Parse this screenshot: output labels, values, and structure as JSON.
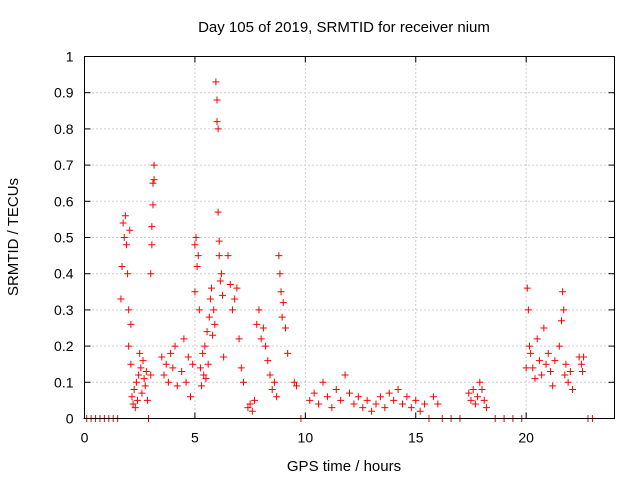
{
  "chart_data": {
    "type": "scatter",
    "title": "Day 105 of 2019, SRMTID for receiver nium",
    "xlabel": "GPS time / hours",
    "ylabel": "SRMTID / TECUs",
    "xlim": [
      0,
      24
    ],
    "ylim": [
      0,
      1
    ],
    "xticks": [
      0,
      5,
      10,
      15,
      20
    ],
    "yticks": [
      0,
      0.1,
      0.2,
      0.3,
      0.4,
      0.5,
      0.6,
      0.7,
      0.8,
      0.9,
      1
    ],
    "xtick_labels": [
      "0",
      "5",
      "10",
      "15",
      "20"
    ],
    "ytick_labels": [
      "0",
      "0.1",
      "0.2",
      "0.3",
      "0.4",
      "0.5",
      "0.6",
      "0.7",
      "0.8",
      "0.9",
      "1"
    ],
    "grid": true,
    "marker": "plus",
    "color": "#ff0000",
    "series": [
      {
        "name": "SRMTID",
        "points": [
          [
            0.1,
            0
          ],
          [
            0.3,
            0
          ],
          [
            0.5,
            0
          ],
          [
            0.7,
            0
          ],
          [
            0.9,
            0
          ],
          [
            1.1,
            0
          ],
          [
            1.3,
            0
          ],
          [
            1.5,
            0
          ],
          [
            1.65,
            0.33
          ],
          [
            1.7,
            0.42
          ],
          [
            1.75,
            0.54
          ],
          [
            1.8,
            0.5
          ],
          [
            1.85,
            0.56
          ],
          [
            1.9,
            0.48
          ],
          [
            1.95,
            0.4
          ],
          [
            2.0,
            0.3
          ],
          [
            2.0,
            0.2
          ],
          [
            2.05,
            0.52
          ],
          [
            2.1,
            0.26
          ],
          [
            2.1,
            0.15
          ],
          [
            2.15,
            0.06
          ],
          [
            2.2,
            0.04
          ],
          [
            2.25,
            0.08
          ],
          [
            2.3,
            0.03
          ],
          [
            2.35,
            0.1
          ],
          [
            2.4,
            0.05
          ],
          [
            2.45,
            0.12
          ],
          [
            2.5,
            0.18
          ],
          [
            2.55,
            0.14
          ],
          [
            2.6,
            0.07
          ],
          [
            2.65,
            0.16
          ],
          [
            2.7,
            0.11
          ],
          [
            2.75,
            0.09
          ],
          [
            2.8,
            0.13
          ],
          [
            2.85,
            0.05
          ],
          [
            2.9,
            0
          ],
          [
            3.0,
            0.12
          ],
          [
            3.0,
            0.4
          ],
          [
            3.05,
            0.48
          ],
          [
            3.05,
            0.53
          ],
          [
            3.1,
            0.59
          ],
          [
            3.1,
            0.65
          ],
          [
            3.15,
            0.7
          ],
          [
            3.15,
            0.66
          ],
          [
            3.5,
            0.17
          ],
          [
            3.6,
            0.12
          ],
          [
            3.7,
            0.15
          ],
          [
            3.8,
            0.1
          ],
          [
            3.9,
            0.18
          ],
          [
            4.0,
            0.14
          ],
          [
            4.1,
            0.2
          ],
          [
            4.2,
            0.09
          ],
          [
            4.4,
            0.13
          ],
          [
            4.5,
            0.22
          ],
          [
            4.6,
            0.1
          ],
          [
            4.7,
            0.17
          ],
          [
            4.8,
            0.06
          ],
          [
            4.9,
            0.15
          ],
          [
            5.0,
            0.35
          ],
          [
            5.0,
            0.48
          ],
          [
            5.05,
            0.5
          ],
          [
            5.1,
            0.42
          ],
          [
            5.15,
            0.45
          ],
          [
            5.2,
            0.3
          ],
          [
            5.25,
            0.14
          ],
          [
            5.3,
            0.09
          ],
          [
            5.35,
            0.18
          ],
          [
            5.4,
            0.12
          ],
          [
            5.45,
            0.2
          ],
          [
            5.5,
            0.11
          ],
          [
            5.55,
            0.24
          ],
          [
            5.6,
            0.15
          ],
          [
            5.65,
            0.28
          ],
          [
            5.7,
            0.33
          ],
          [
            5.75,
            0.36
          ],
          [
            5.8,
            0.23
          ],
          [
            5.85,
            0.3
          ],
          [
            5.9,
            0.26
          ],
          [
            5.95,
            0.93
          ],
          [
            6.0,
            0.88
          ],
          [
            6.0,
            0.82
          ],
          [
            6.05,
            0.8
          ],
          [
            6.05,
            0.57
          ],
          [
            6.1,
            0.49
          ],
          [
            6.1,
            0.45
          ],
          [
            6.15,
            0.38
          ],
          [
            6.2,
            0.4
          ],
          [
            6.25,
            0.34
          ],
          [
            6.3,
            0.17
          ],
          [
            6.5,
            0.45
          ],
          [
            6.6,
            0.37
          ],
          [
            6.7,
            0.3
          ],
          [
            6.8,
            0.33
          ],
          [
            6.9,
            0.36
          ],
          [
            7.0,
            0.22
          ],
          [
            7.1,
            0.14
          ],
          [
            7.2,
            0.1
          ],
          [
            7.4,
            0.03
          ],
          [
            7.5,
            0.04
          ],
          [
            7.6,
            0.02
          ],
          [
            7.7,
            0.05
          ],
          [
            7.8,
            0.26
          ],
          [
            7.9,
            0.3
          ],
          [
            8.0,
            0.22
          ],
          [
            8.1,
            0.25
          ],
          [
            8.2,
            0.2
          ],
          [
            8.3,
            0.16
          ],
          [
            8.4,
            0.12
          ],
          [
            8.5,
            0.08
          ],
          [
            8.6,
            0.1
          ],
          [
            8.7,
            0.06
          ],
          [
            8.8,
            0.45
          ],
          [
            8.85,
            0.4
          ],
          [
            8.9,
            0.35
          ],
          [
            8.95,
            0.28
          ],
          [
            9.0,
            0.32
          ],
          [
            9.1,
            0.25
          ],
          [
            9.2,
            0.18
          ],
          [
            9.5,
            0.1
          ],
          [
            9.6,
            0.09
          ],
          [
            9.8,
            0
          ],
          [
            10.2,
            0.05
          ],
          [
            10.4,
            0.07
          ],
          [
            10.6,
            0.04
          ],
          [
            10.8,
            0.1
          ],
          [
            11.0,
            0.06
          ],
          [
            11.2,
            0.03
          ],
          [
            11.4,
            0.08
          ],
          [
            11.6,
            0.05
          ],
          [
            11.8,
            0.12
          ],
          [
            12.0,
            0.07
          ],
          [
            12.2,
            0.04
          ],
          [
            12.4,
            0.06
          ],
          [
            12.6,
            0.03
          ],
          [
            12.8,
            0.05
          ],
          [
            13.0,
            0.02
          ],
          [
            13.2,
            0.04
          ],
          [
            13.4,
            0.06
          ],
          [
            13.6,
            0.03
          ],
          [
            13.8,
            0.07
          ],
          [
            14.0,
            0.05
          ],
          [
            14.2,
            0.08
          ],
          [
            14.4,
            0.04
          ],
          [
            14.6,
            0.06
          ],
          [
            14.8,
            0.03
          ],
          [
            15.0,
            0.05
          ],
          [
            15.2,
            0.02
          ],
          [
            15.4,
            0.04
          ],
          [
            15.6,
            0
          ],
          [
            15.8,
            0.06
          ],
          [
            16.0,
            0.04
          ],
          [
            16.2,
            0
          ],
          [
            16.6,
            0
          ],
          [
            17.0,
            0
          ],
          [
            17.4,
            0.07
          ],
          [
            17.5,
            0.05
          ],
          [
            17.6,
            0.08
          ],
          [
            17.7,
            0.04
          ],
          [
            17.8,
            0.06
          ],
          [
            17.9,
            0.1
          ],
          [
            18.0,
            0.08
          ],
          [
            18.1,
            0.05
          ],
          [
            18.2,
            0.03
          ],
          [
            18.6,
            0
          ],
          [
            19.0,
            0
          ],
          [
            19.4,
            0
          ],
          [
            19.8,
            0
          ],
          [
            20.0,
            0.14
          ],
          [
            20.05,
            0.36
          ],
          [
            20.1,
            0.3
          ],
          [
            20.15,
            0.2
          ],
          [
            20.2,
            0.18
          ],
          [
            20.3,
            0.14
          ],
          [
            20.4,
            0.11
          ],
          [
            20.5,
            0.22
          ],
          [
            20.6,
            0.16
          ],
          [
            20.7,
            0.12
          ],
          [
            20.8,
            0.25
          ],
          [
            20.9,
            0.15
          ],
          [
            21.0,
            0.18
          ],
          [
            21.1,
            0.13
          ],
          [
            21.2,
            0.09
          ],
          [
            21.3,
            0.16
          ],
          [
            21.5,
            0.2
          ],
          [
            21.6,
            0.27
          ],
          [
            21.65,
            0.35
          ],
          [
            21.7,
            0.3
          ],
          [
            21.75,
            0.12
          ],
          [
            21.8,
            0.15
          ],
          [
            21.9,
            0.1
          ],
          [
            22.0,
            0.13
          ],
          [
            22.1,
            0.08
          ],
          [
            22.4,
            0.17
          ],
          [
            22.5,
            0.15
          ],
          [
            22.55,
            0.13
          ],
          [
            22.6,
            0.17
          ],
          [
            22.8,
            0
          ],
          [
            23.0,
            0
          ]
        ]
      }
    ]
  }
}
